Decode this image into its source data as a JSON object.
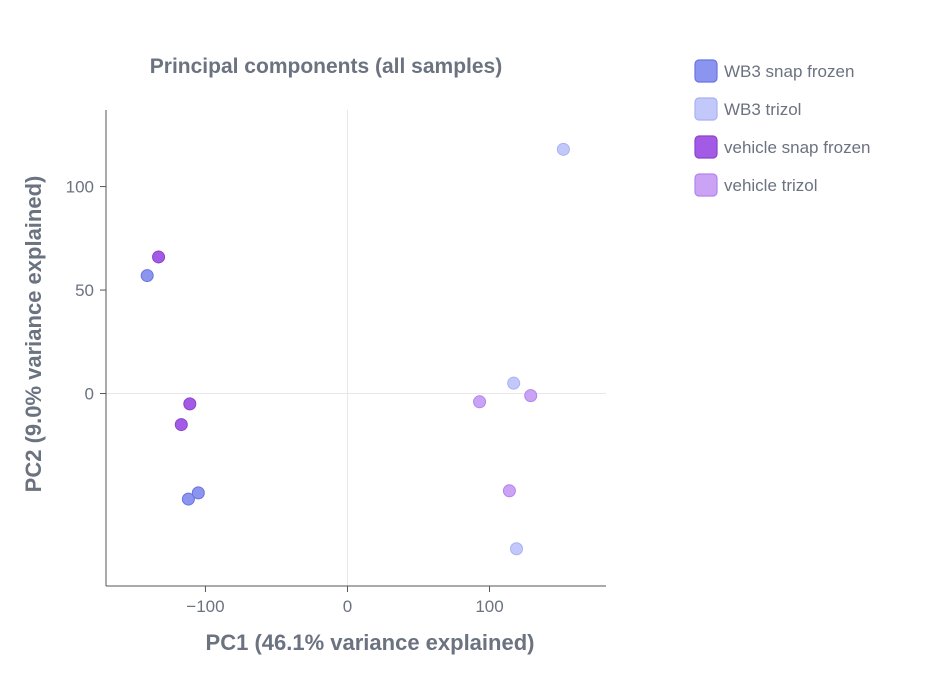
{
  "chart_data": {
    "type": "scatter",
    "title": "Principal components (all samples)",
    "xlabel": "PC1 (46.1% variance explained)",
    "ylabel": "PC2 (9.0% variance explained)",
    "xlim": [
      -170,
      182
    ],
    "ylim": [
      -93,
      137
    ],
    "xticks": [
      -100,
      0,
      100
    ],
    "xtick_labels": [
      "−100",
      "0",
      "100"
    ],
    "yticks": [
      0,
      50,
      100
    ],
    "ytick_labels": [
      "0",
      "50",
      "100"
    ],
    "zero_lines": true,
    "legend_position": "right",
    "series": [
      {
        "name": "WB3 snap frozen",
        "color": "#8b94ef",
        "stroke": "#6a73e0",
        "points": [
          [
            -141,
            57
          ],
          [
            -112,
            -51
          ],
          [
            -105,
            -48
          ]
        ]
      },
      {
        "name": "WB3 trizol",
        "color": "#c2c9fa",
        "stroke": "#a8b1f2",
        "points": [
          [
            152,
            118
          ],
          [
            117,
            5
          ],
          [
            119,
            -75
          ]
        ]
      },
      {
        "name": "vehicle snap frozen",
        "color": "#a35be5",
        "stroke": "#8a44cf",
        "points": [
          [
            -133,
            66
          ],
          [
            -111,
            -5
          ],
          [
            -117,
            -15
          ]
        ]
      },
      {
        "name": "vehicle trizol",
        "color": "#cba3f5",
        "stroke": "#b284ee",
        "points": [
          [
            93,
            -4
          ],
          [
            129,
            -1
          ],
          [
            114,
            -47
          ]
        ]
      }
    ]
  }
}
